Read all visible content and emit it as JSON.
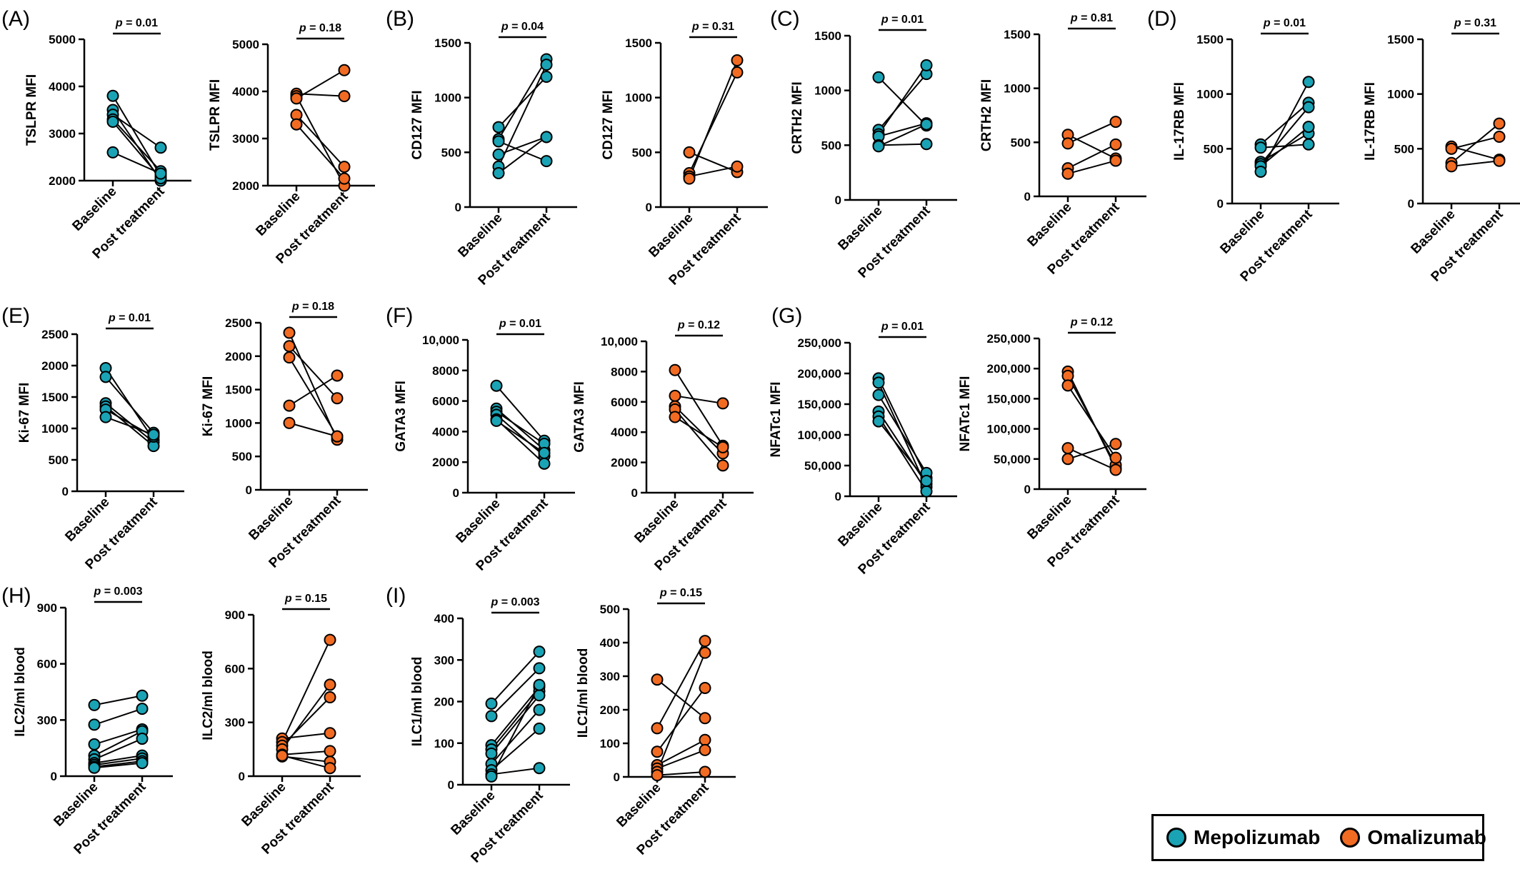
{
  "colors": {
    "mepolizumab": "#1aa3b5",
    "omalizumab": "#f26b22"
  },
  "legend": {
    "entries": [
      {
        "name": "Mepolizumab",
        "color": "#1aa3b5"
      },
      {
        "name": "Omalizumab",
        "color": "#f26b22"
      }
    ]
  },
  "panel_letters": [
    "(A)",
    "(B)",
    "(C)",
    "(D)",
    "(E)",
    "(F)",
    "(G)",
    "(H)",
    "(I)"
  ],
  "chart_data": [
    {
      "type": "scatter",
      "panel": "(A)",
      "ylabel": "TSLPR MFI",
      "categories": [
        "Baseline",
        "Post treatment"
      ],
      "ylim": [
        2000,
        5000
      ],
      "ticks": [
        "2000",
        "3000",
        "4000",
        "5000"
      ],
      "pvalue": "= 0.01",
      "series_color": "mepolizumab",
      "pairs": [
        [
          3800,
          2100
        ],
        [
          3500,
          2000
        ],
        [
          3400,
          2700
        ],
        [
          3300,
          2200
        ],
        [
          3250,
          2050
        ],
        [
          2600,
          2150
        ]
      ]
    },
    {
      "type": "scatter",
      "panel": "",
      "ylabel": "TSLPR MFI",
      "categories": [
        "Baseline",
        "Post treatment"
      ],
      "ylim": [
        2000,
        5000
      ],
      "ticks": [
        "2000",
        "3000",
        "4000",
        "5000"
      ],
      "pvalue": "= 0.18",
      "series_color": "omalizumab",
      "pairs": [
        [
          3950,
          3900
        ],
        [
          3900,
          2000
        ],
        [
          3850,
          4450
        ],
        [
          3500,
          2400
        ],
        [
          3300,
          2150
        ]
      ]
    },
    {
      "type": "scatter",
      "panel": "(B)",
      "ylabel": "CD127 MFI",
      "categories": [
        "Baseline",
        "Post treatment"
      ],
      "ylim": [
        0,
        1500
      ],
      "ticks": [
        "0",
        "500",
        "1000",
        "1500"
      ],
      "pvalue": "= 0.04",
      "series_color": "mepolizumab",
      "pairs": [
        [
          730,
          1190
        ],
        [
          620,
          1350
        ],
        [
          600,
          420
        ],
        [
          480,
          640
        ],
        [
          370,
          1300
        ],
        [
          310,
          640
        ]
      ]
    },
    {
      "type": "scatter",
      "panel": "",
      "ylabel": "CD127 MFI",
      "categories": [
        "Baseline",
        "Post treatment"
      ],
      "ylim": [
        0,
        1500
      ],
      "ticks": [
        "0",
        "500",
        "1000",
        "1500"
      ],
      "pvalue": "= 0.31",
      "series_color": "omalizumab",
      "pairs": [
        [
          500,
          320
        ],
        [
          310,
          1230
        ],
        [
          280,
          370
        ],
        [
          260,
          1340
        ]
      ]
    },
    {
      "type": "scatter",
      "panel": "(C)",
      "ylabel": "CRTH2 MFI",
      "categories": [
        "Baseline",
        "Post treatment"
      ],
      "ylim": [
        0,
        1500
      ],
      "ticks": [
        "0",
        "500",
        "1000",
        "1500"
      ],
      "pvalue": "= 0.01",
      "series_color": "mepolizumab",
      "pairs": [
        [
          1120,
          680
        ],
        [
          640,
          1150
        ],
        [
          600,
          1230
        ],
        [
          580,
          700
        ],
        [
          500,
          510
        ],
        [
          490,
          690
        ]
      ]
    },
    {
      "type": "scatter",
      "panel": "",
      "ylabel": "CRTH2 MFI",
      "categories": [
        "Baseline",
        "Post treatment"
      ],
      "ylim": [
        0,
        1500
      ],
      "ticks": [
        "0",
        "500",
        "1000",
        "1500"
      ],
      "pvalue": "= 0.81",
      "series_color": "omalizumab",
      "pairs": [
        [
          570,
          350
        ],
        [
          490,
          690
        ],
        [
          260,
          480
        ],
        [
          210,
          330
        ]
      ]
    },
    {
      "type": "scatter",
      "panel": "(D)",
      "ylabel": "IL-17RB  MFI",
      "categories": [
        "Baseline",
        "Post treatment"
      ],
      "ylim": [
        0,
        1500
      ],
      "ticks": [
        "0",
        "500",
        "1000",
        "1500"
      ],
      "pvalue": "= 0.01",
      "series_color": "mepolizumab",
      "pairs": [
        [
          540,
          920
        ],
        [
          510,
          540
        ],
        [
          380,
          640
        ],
        [
          360,
          880
        ],
        [
          340,
          700
        ],
        [
          290,
          1110
        ]
      ]
    },
    {
      "type": "scatter",
      "panel": "",
      "ylabel": "IL-17RB  MFI",
      "categories": [
        "Baseline",
        "Post treatment"
      ],
      "ylim": [
        0,
        1500
      ],
      "ticks": [
        "0",
        "500",
        "1000",
        "1500"
      ],
      "pvalue": "= 0.31",
      "series_color": "omalizumab",
      "pairs": [
        [
          520,
          400
        ],
        [
          500,
          610
        ],
        [
          370,
          730
        ],
        [
          340,
          390
        ]
      ]
    },
    {
      "type": "scatter",
      "panel": "(E)",
      "ylabel": "Ki-67 MFI",
      "categories": [
        "Baseline",
        "Post treatment"
      ],
      "ylim": [
        0,
        2500
      ],
      "ticks": [
        "0",
        "500",
        "1000",
        "1500",
        "2000",
        "2500"
      ],
      "pvalue": "= 0.01",
      "series_color": "mepolizumab",
      "pairs": [
        [
          1960,
          820
        ],
        [
          1820,
          930
        ],
        [
          1400,
          780
        ],
        [
          1350,
          720
        ],
        [
          1300,
          870
        ],
        [
          1180,
          900
        ]
      ]
    },
    {
      "type": "scatter",
      "panel": "",
      "ylabel": "Ki-67 MFI",
      "categories": [
        "Baseline",
        "Post treatment"
      ],
      "ylim": [
        0,
        2500
      ],
      "ticks": [
        "0",
        "500",
        "1000",
        "1500",
        "2000",
        "2500"
      ],
      "pvalue": "= 0.18",
      "series_color": "omalizumab",
      "pairs": [
        [
          2350,
          750
        ],
        [
          2150,
          1370
        ],
        [
          1980,
          800
        ],
        [
          1260,
          1710
        ],
        [
          1000,
          800
        ]
      ]
    },
    {
      "type": "scatter",
      "panel": "(F)",
      "ylabel": "GATA3 MFI",
      "categories": [
        "Baseline",
        "Post treatment"
      ],
      "ylim": [
        0,
        10000
      ],
      "ticks": [
        "0",
        "2000",
        "4000",
        "6000",
        "8000",
        "10,000"
      ],
      "pvalue": "= 0.01",
      "series_color": "mepolizumab",
      "pairs": [
        [
          7000,
          3400
        ],
        [
          5500,
          2800
        ],
        [
          5300,
          3200
        ],
        [
          5100,
          2400
        ],
        [
          4800,
          1900
        ],
        [
          4700,
          2600
        ]
      ]
    },
    {
      "type": "scatter",
      "panel": "",
      "ylabel": "GATA3 MFI",
      "categories": [
        "Baseline",
        "Post treatment"
      ],
      "ylim": [
        0,
        10000
      ],
      "ticks": [
        "0",
        "2000",
        "4000",
        "6000",
        "8000",
        "10,000"
      ],
      "pvalue": "= 0.12",
      "series_color": "omalizumab",
      "pairs": [
        [
          8100,
          3100
        ],
        [
          6400,
          5900
        ],
        [
          5700,
          2600
        ],
        [
          5500,
          1800
        ],
        [
          5000,
          3000
        ]
      ]
    },
    {
      "type": "scatter",
      "panel": "(G)",
      "ylabel": "NFATc1 MFI",
      "categories": [
        "Baseline",
        "Post treatment"
      ],
      "ylim": [
        0,
        250000
      ],
      "ticks": [
        "0",
        "50,000",
        "100,000",
        "150,000",
        "200,000",
        "250,000"
      ],
      "pvalue": "= 0.01",
      "series_color": "mepolizumab",
      "pairs": [
        [
          192000,
          30000
        ],
        [
          185000,
          15000
        ],
        [
          165000,
          38000
        ],
        [
          138000,
          20000
        ],
        [
          130000,
          8000
        ],
        [
          122000,
          25000
        ]
      ]
    },
    {
      "type": "scatter",
      "panel": "",
      "ylabel": "NFATc1 MFI",
      "categories": [
        "Baseline",
        "Post treatment"
      ],
      "ylim": [
        0,
        250000
      ],
      "ticks": [
        "0",
        "50,000",
        "100,000",
        "150,000",
        "200,000",
        "250,000"
      ],
      "pvalue": "= 0.12",
      "series_color": "omalizumab",
      "pairs": [
        [
          195000,
          35000
        ],
        [
          188000,
          40000
        ],
        [
          172000,
          52000
        ],
        [
          68000,
          32000
        ],
        [
          50000,
          75000
        ]
      ]
    },
    {
      "type": "scatter",
      "panel": "(H)",
      "ylabel": "ILC2/ml blood",
      "categories": [
        "Baseline",
        "Post treatment"
      ],
      "ylim": [
        0,
        900
      ],
      "ticks": [
        "0",
        "300",
        "600",
        "900"
      ],
      "pvalue": "= 0.003",
      "series_color": "mepolizumab",
      "pairs": [
        [
          380,
          430
        ],
        [
          275,
          360
        ],
        [
          170,
          250
        ],
        [
          110,
          240
        ],
        [
          90,
          200
        ],
        [
          70,
          110
        ],
        [
          60,
          95
        ],
        [
          50,
          80
        ],
        [
          45,
          70
        ]
      ]
    },
    {
      "type": "scatter",
      "panel": "",
      "ylabel": "ILC2/ml blood",
      "categories": [
        "Baseline",
        "Post treatment"
      ],
      "ylim": [
        0,
        900
      ],
      "ticks": [
        "0",
        "300",
        "600",
        "900"
      ],
      "pvalue": "= 0.15",
      "series_color": "omalizumab",
      "pairs": [
        [
          210,
          240
        ],
        [
          190,
          760
        ],
        [
          170,
          440
        ],
        [
          150,
          510
        ],
        [
          120,
          140
        ],
        [
          110,
          80
        ],
        [
          115,
          45
        ]
      ]
    },
    {
      "type": "scatter",
      "panel": "(I)",
      "ylabel": "ILC1/ml blood",
      "categories": [
        "Baseline",
        "Post treatment"
      ],
      "ylim": [
        0,
        400
      ],
      "ticks": [
        "0",
        "100",
        "200",
        "300",
        "400"
      ],
      "pvalue": "= 0.003",
      "series_color": "mepolizumab",
      "pairs": [
        [
          195,
          320
        ],
        [
          165,
          280
        ],
        [
          95,
          235
        ],
        [
          85,
          225
        ],
        [
          75,
          215
        ],
        [
          50,
          180
        ],
        [
          35,
          135
        ],
        [
          25,
          40
        ],
        [
          20,
          240
        ]
      ]
    },
    {
      "type": "scatter",
      "panel": "",
      "ylabel": "ILC1/ml blood",
      "categories": [
        "Baseline",
        "Post treatment"
      ],
      "ylim": [
        0,
        500
      ],
      "ticks": [
        "0",
        "100",
        "200",
        "300",
        "400",
        "500"
      ],
      "pvalue": "= 0.15",
      "series_color": "omalizumab",
      "pairs": [
        [
          290,
          175
        ],
        [
          145,
          405
        ],
        [
          75,
          265
        ],
        [
          35,
          110
        ],
        [
          25,
          80
        ],
        [
          15,
          370
        ],
        [
          5,
          15
        ]
      ]
    }
  ]
}
